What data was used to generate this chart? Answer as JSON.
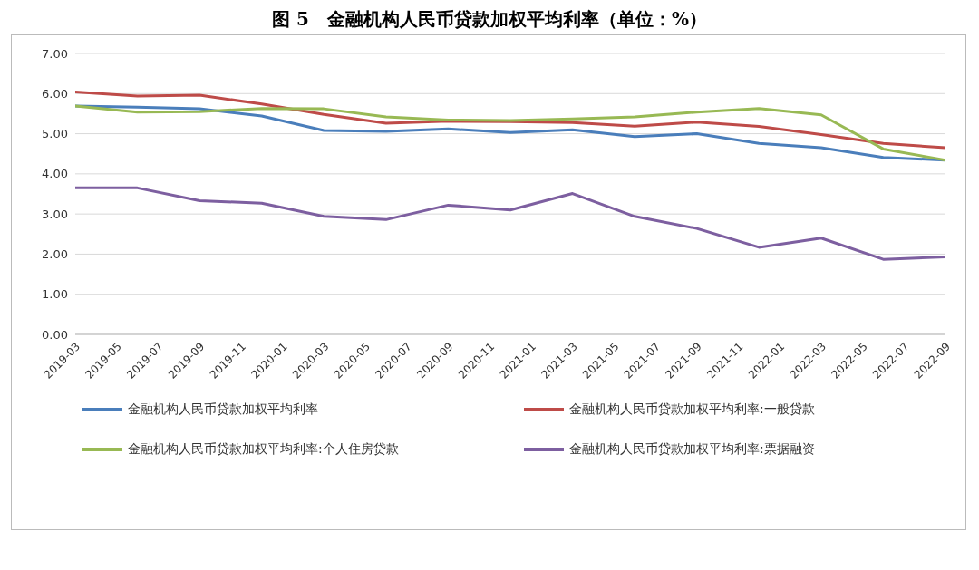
{
  "chart_data": {
    "type": "line",
    "title": "图 5　金融机构人民币贷款加权平均利率（单位：%）",
    "x": [
      "2019-03",
      "2019-06",
      "2019-09",
      "2019-12",
      "2020-03",
      "2020-06",
      "2020-09",
      "2020-12",
      "2021-03",
      "2021-06",
      "2021-09",
      "2021-12",
      "2022-03",
      "2022-06",
      "2022-09"
    ],
    "series": [
      {
        "name": "金融机构人民币贷款加权平均利率",
        "color": "#4a7ebb",
        "values": [
          5.69,
          5.66,
          5.62,
          5.44,
          5.08,
          5.06,
          5.12,
          5.03,
          5.1,
          4.93,
          5.0,
          4.76,
          4.65,
          4.41,
          4.34
        ]
      },
      {
        "name": "金融机构人民币贷款加权平均利率:一般贷款",
        "color": "#be4b48",
        "values": [
          6.04,
          5.94,
          5.96,
          5.74,
          5.48,
          5.26,
          5.31,
          5.3,
          5.28,
          5.19,
          5.29,
          5.18,
          4.98,
          4.76,
          4.65
        ]
      },
      {
        "name": "金融机构人民币贷款加权平均利率:个人住房贷款",
        "color": "#98b954",
        "values": [
          5.69,
          5.54,
          5.55,
          5.63,
          5.62,
          5.42,
          5.34,
          5.33,
          5.37,
          5.42,
          5.54,
          5.63,
          5.47,
          4.62,
          4.34
        ]
      },
      {
        "name": "金融机构人民币贷款加权平均利率:票据融资",
        "color": "#7d5fa0",
        "values": [
          3.65,
          3.65,
          3.33,
          3.27,
          2.94,
          2.86,
          3.22,
          3.1,
          3.51,
          2.94,
          2.64,
          2.17,
          2.4,
          1.87,
          1.93
        ]
      }
    ],
    "xlim": [
      "2019-03",
      "2022-09"
    ],
    "xticks": [
      "2019-03",
      "2019-05",
      "2019-07",
      "2019-09",
      "2019-11",
      "2020-01",
      "2020-03",
      "2020-05",
      "2020-07",
      "2020-09",
      "2020-11",
      "2021-01",
      "2021-03",
      "2021-05",
      "2021-07",
      "2021-09",
      "2021-11",
      "2022-01",
      "2022-03",
      "2022-05",
      "2022-07",
      "2022-09"
    ],
    "ylim": [
      0,
      7
    ],
    "yticks": [
      {
        "value": 0,
        "label": "0.00"
      },
      {
        "value": 1,
        "label": "1.00"
      },
      {
        "value": 2,
        "label": "2.00"
      },
      {
        "value": 3,
        "label": "3.00"
      },
      {
        "value": 4,
        "label": "4.00"
      },
      {
        "value": 5,
        "label": "5.00"
      },
      {
        "value": 6,
        "label": "6.00"
      },
      {
        "value": 7,
        "label": "7.00"
      }
    ],
    "grid": "y",
    "legend": "bottom",
    "marker": "none",
    "line_style": "solid"
  }
}
